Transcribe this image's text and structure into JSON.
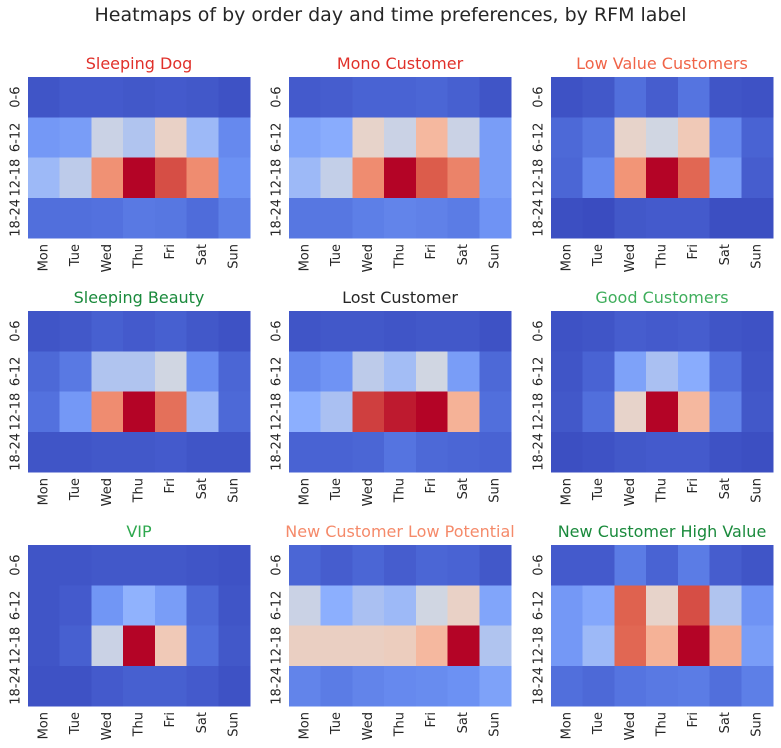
{
  "figure_title": "Heatmaps of by order day and time preferences, by RFM label",
  "colors": {
    "text": "#262626",
    "red": "#d62728",
    "orange_red": "#f05a3c",
    "green": "#1a8a3c",
    "light_green": "#3fae5c",
    "coral": "#f08060"
  },
  "chart_data": [
    {
      "type": "heatmap",
      "title": "Sleeping Dog",
      "title_color": "#e0302a",
      "xlabels": [
        "Mon",
        "Tue",
        "Wed",
        "Thu",
        "Fri",
        "Sat",
        "Sun"
      ],
      "ylabels": [
        "0-6",
        "6-12",
        "12-18",
        "18-24"
      ],
      "values": [
        [
          0.03,
          0.05,
          0.05,
          0.04,
          0.05,
          0.04,
          0.02
        ],
        [
          0.28,
          0.3,
          0.47,
          0.43,
          0.56,
          0.4,
          0.22
        ],
        [
          0.4,
          0.45,
          0.77,
          1.0,
          0.9,
          0.78,
          0.25
        ],
        [
          0.12,
          0.12,
          0.13,
          0.16,
          0.15,
          0.11,
          0.18
        ]
      ],
      "colormap": "coolwarm"
    },
    {
      "type": "heatmap",
      "title": "Mono Customer",
      "title_color": "#e0302a",
      "xlabels": [
        "Mon",
        "Tue",
        "Wed",
        "Thu",
        "Fri",
        "Sat",
        "Sun"
      ],
      "ylabels": [
        "0-6",
        "6-12",
        "12-18",
        "18-24"
      ],
      "values": [
        [
          0.05,
          0.06,
          0.08,
          0.08,
          0.09,
          0.07,
          0.03
        ],
        [
          0.33,
          0.36,
          0.55,
          0.47,
          0.66,
          0.47,
          0.3
        ],
        [
          0.4,
          0.46,
          0.78,
          1.0,
          0.88,
          0.8,
          0.3
        ],
        [
          0.15,
          0.15,
          0.18,
          0.2,
          0.19,
          0.17,
          0.26
        ]
      ],
      "colormap": "coolwarm"
    },
    {
      "type": "heatmap",
      "title": "Low Value Customers",
      "title_color": "#f06448",
      "xlabels": [
        "Mon",
        "Tue",
        "Wed",
        "Thu",
        "Fri",
        "Sat",
        "Sun"
      ],
      "ylabels": [
        "0-6",
        "6-12",
        "12-18",
        "18-24"
      ],
      "values": [
        [
          0.02,
          0.04,
          0.12,
          0.06,
          0.14,
          0.03,
          0.02
        ],
        [
          0.1,
          0.15,
          0.55,
          0.48,
          0.6,
          0.22,
          0.08
        ],
        [
          0.09,
          0.22,
          0.76,
          1.0,
          0.86,
          0.3,
          0.06
        ],
        [
          0.01,
          0.0,
          0.04,
          0.05,
          0.05,
          0.01,
          0.01
        ]
      ],
      "colormap": "coolwarm"
    },
    {
      "type": "heatmap",
      "title": "Sleeping Beauty",
      "title_color": "#1a8a3c",
      "xlabels": [
        "Mon",
        "Tue",
        "Wed",
        "Thu",
        "Fri",
        "Sat",
        "Sun"
      ],
      "ylabels": [
        "0-6",
        "6-12",
        "12-18",
        "18-24"
      ],
      "values": [
        [
          0.03,
          0.04,
          0.07,
          0.05,
          0.07,
          0.04,
          0.02
        ],
        [
          0.1,
          0.16,
          0.43,
          0.43,
          0.48,
          0.24,
          0.09
        ],
        [
          0.13,
          0.28,
          0.78,
          1.0,
          0.84,
          0.4,
          0.1
        ],
        [
          0.03,
          0.03,
          0.04,
          0.04,
          0.05,
          0.03,
          0.03
        ]
      ],
      "colormap": "coolwarm"
    },
    {
      "type": "heatmap",
      "title": "Lost Customer",
      "title_color": "#262626",
      "xlabels": [
        "Mon",
        "Tue",
        "Wed",
        "Thu",
        "Fri",
        "Sat",
        "Sun"
      ],
      "ylabels": [
        "0-6",
        "6-12",
        "12-18",
        "18-24"
      ],
      "values": [
        [
          0.03,
          0.04,
          0.04,
          0.03,
          0.04,
          0.04,
          0.02
        ],
        [
          0.22,
          0.26,
          0.45,
          0.41,
          0.48,
          0.3,
          0.1
        ],
        [
          0.37,
          0.42,
          0.92,
          0.97,
          1.0,
          0.68,
          0.12
        ],
        [
          0.08,
          0.08,
          0.09,
          0.14,
          0.1,
          0.09,
          0.08
        ]
      ],
      "colormap": "coolwarm"
    },
    {
      "type": "heatmap",
      "title": "Good Customers",
      "title_color": "#3fae5c",
      "xlabels": [
        "Mon",
        "Tue",
        "Wed",
        "Thu",
        "Fri",
        "Sat",
        "Sun"
      ],
      "ylabels": [
        "0-6",
        "6-12",
        "12-18",
        "18-24"
      ],
      "values": [
        [
          0.02,
          0.03,
          0.06,
          0.05,
          0.06,
          0.03,
          0.02
        ],
        [
          0.03,
          0.08,
          0.32,
          0.42,
          0.36,
          0.13,
          0.03
        ],
        [
          0.04,
          0.12,
          0.55,
          1.0,
          0.66,
          0.2,
          0.04
        ],
        [
          0.01,
          0.02,
          0.04,
          0.05,
          0.05,
          0.02,
          0.01
        ]
      ],
      "colormap": "coolwarm"
    },
    {
      "type": "heatmap",
      "title": "VIP",
      "title_color": "#2ea84e",
      "xlabels": [
        "Mon",
        "Tue",
        "Wed",
        "Thu",
        "Fri",
        "Sat",
        "Sun"
      ],
      "ylabels": [
        "0-6",
        "6-12",
        "12-18",
        "18-24"
      ],
      "values": [
        [
          0.03,
          0.03,
          0.04,
          0.04,
          0.04,
          0.03,
          0.02
        ],
        [
          0.03,
          0.05,
          0.27,
          0.38,
          0.3,
          0.1,
          0.03
        ],
        [
          0.03,
          0.07,
          0.47,
          1.0,
          0.6,
          0.12,
          0.04
        ],
        [
          0.02,
          0.02,
          0.05,
          0.07,
          0.07,
          0.05,
          0.02
        ]
      ],
      "colormap": "coolwarm"
    },
    {
      "type": "heatmap",
      "title": "New Customer Low Potential",
      "title_color": "#f58a6a",
      "xlabels": [
        "Mon",
        "Tue",
        "Wed",
        "Thu",
        "Fri",
        "Sat",
        "Sun"
      ],
      "ylabels": [
        "0-6",
        "6-12",
        "12-18",
        "18-24"
      ],
      "values": [
        [
          0.09,
          0.06,
          0.09,
          0.06,
          0.09,
          0.08,
          0.04
        ],
        [
          0.47,
          0.37,
          0.42,
          0.4,
          0.48,
          0.56,
          0.33
        ],
        [
          0.57,
          0.57,
          0.57,
          0.58,
          0.66,
          1.0,
          0.43
        ],
        [
          0.2,
          0.17,
          0.2,
          0.22,
          0.23,
          0.25,
          0.32
        ]
      ],
      "colormap": "coolwarm"
    },
    {
      "type": "heatmap",
      "title": "New Customer High Value",
      "title_color": "#1a8a3c",
      "xlabels": [
        "Mon",
        "Tue",
        "Wed",
        "Thu",
        "Fri",
        "Sat",
        "Sun"
      ],
      "ylabels": [
        "0-6",
        "6-12",
        "12-18",
        "18-24"
      ],
      "values": [
        [
          0.05,
          0.05,
          0.17,
          0.08,
          0.17,
          0.06,
          0.03
        ],
        [
          0.28,
          0.34,
          0.87,
          0.55,
          0.9,
          0.43,
          0.26
        ],
        [
          0.28,
          0.4,
          0.86,
          0.68,
          1.0,
          0.7,
          0.3
        ],
        [
          0.12,
          0.1,
          0.14,
          0.16,
          0.17,
          0.12,
          0.18
        ]
      ],
      "colormap": "coolwarm"
    }
  ]
}
